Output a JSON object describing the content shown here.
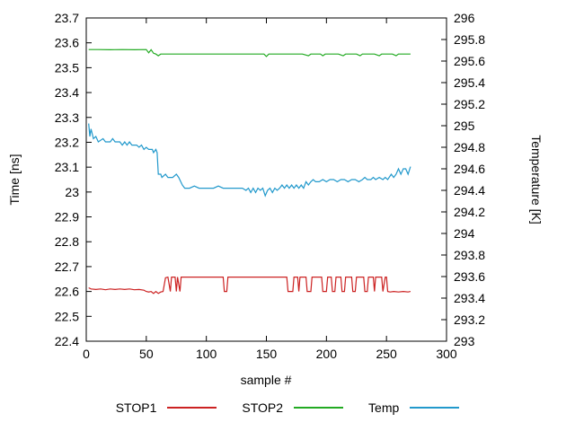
{
  "chart_data": {
    "type": "line",
    "title": "",
    "xlabel": "sample #",
    "ylabel_left": "Time [ns]",
    "ylabel_right": "Temperature [K]",
    "x_range": [
      0,
      300
    ],
    "x_ticks": [
      0,
      50,
      100,
      150,
      200,
      250,
      300
    ],
    "y_left_range": [
      22.4,
      23.7
    ],
    "y_left_ticks": [
      22.4,
      22.5,
      22.6,
      22.7,
      22.8,
      22.9,
      23,
      23.1,
      23.2,
      23.3,
      23.4,
      23.5,
      23.6,
      23.7
    ],
    "y_right_range": [
      293,
      296
    ],
    "y_right_ticks": [
      293,
      293.2,
      293.4,
      293.6,
      293.8,
      294,
      294.2,
      294.4,
      294.6,
      294.8,
      295,
      295.2,
      295.4,
      295.6,
      295.8,
      296
    ],
    "grid": false,
    "legend_position": "bottom",
    "series": [
      {
        "name": "STOP1",
        "axis": "left",
        "color": "#cc2222",
        "points": [
          [
            2,
            22.615
          ],
          [
            4,
            22.61
          ],
          [
            8,
            22.608
          ],
          [
            12,
            22.61
          ],
          [
            16,
            22.607
          ],
          [
            20,
            22.61
          ],
          [
            24,
            22.608
          ],
          [
            28,
            22.61
          ],
          [
            32,
            22.608
          ],
          [
            36,
            22.61
          ],
          [
            40,
            22.607
          ],
          [
            44,
            22.608
          ],
          [
            48,
            22.605
          ],
          [
            50,
            22.6
          ],
          [
            52,
            22.598
          ],
          [
            54,
            22.6
          ],
          [
            56,
            22.592
          ],
          [
            58,
            22.6
          ],
          [
            60,
            22.592
          ],
          [
            62,
            22.598
          ],
          [
            64,
            22.6
          ],
          [
            66,
            22.655
          ],
          [
            68,
            22.658
          ],
          [
            70,
            22.6
          ],
          [
            71,
            22.658
          ],
          [
            74,
            22.658
          ],
          [
            75,
            22.6
          ],
          [
            76,
            22.658
          ],
          [
            78,
            22.6
          ],
          [
            79,
            22.658
          ],
          [
            90,
            22.658
          ],
          [
            100,
            22.658
          ],
          [
            110,
            22.658
          ],
          [
            114,
            22.658
          ],
          [
            115,
            22.6
          ],
          [
            117,
            22.6
          ],
          [
            118,
            22.658
          ],
          [
            130,
            22.658
          ],
          [
            140,
            22.658
          ],
          [
            150,
            22.658
          ],
          [
            160,
            22.658
          ],
          [
            167,
            22.658
          ],
          [
            168,
            22.6
          ],
          [
            172,
            22.6
          ],
          [
            173,
            22.658
          ],
          [
            176,
            22.658
          ],
          [
            177,
            22.6
          ],
          [
            178,
            22.658
          ],
          [
            183,
            22.658
          ],
          [
            184,
            22.6
          ],
          [
            187,
            22.6
          ],
          [
            188,
            22.658
          ],
          [
            196,
            22.658
          ],
          [
            197,
            22.6
          ],
          [
            200,
            22.6
          ],
          [
            201,
            22.658
          ],
          [
            204,
            22.658
          ],
          [
            205,
            22.6
          ],
          [
            207,
            22.6
          ],
          [
            208,
            22.658
          ],
          [
            212,
            22.658
          ],
          [
            213,
            22.6
          ],
          [
            215,
            22.6
          ],
          [
            216,
            22.658
          ],
          [
            221,
            22.658
          ],
          [
            222,
            22.6
          ],
          [
            224,
            22.6
          ],
          [
            225,
            22.658
          ],
          [
            231,
            22.658
          ],
          [
            232,
            22.6
          ],
          [
            234,
            22.6
          ],
          [
            235,
            22.658
          ],
          [
            239,
            22.658
          ],
          [
            240,
            22.6
          ],
          [
            241,
            22.658
          ],
          [
            246,
            22.658
          ],
          [
            247,
            22.6
          ],
          [
            249,
            22.658
          ],
          [
            250,
            22.658
          ],
          [
            251,
            22.6
          ],
          [
            253,
            22.598
          ],
          [
            256,
            22.6
          ],
          [
            260,
            22.598
          ],
          [
            264,
            22.6
          ],
          [
            268,
            22.598
          ],
          [
            270,
            22.6
          ]
        ]
      },
      {
        "name": "STOP2",
        "axis": "left",
        "color": "#22aa22",
        "points": [
          [
            2,
            23.573
          ],
          [
            10,
            23.573
          ],
          [
            20,
            23.572
          ],
          [
            30,
            23.573
          ],
          [
            40,
            23.572
          ],
          [
            50,
            23.573
          ],
          [
            52,
            23.56
          ],
          [
            54,
            23.572
          ],
          [
            56,
            23.558
          ],
          [
            58,
            23.555
          ],
          [
            60,
            23.548
          ],
          [
            62,
            23.555
          ],
          [
            70,
            23.555
          ],
          [
            80,
            23.555
          ],
          [
            90,
            23.555
          ],
          [
            100,
            23.555
          ],
          [
            110,
            23.555
          ],
          [
            120,
            23.555
          ],
          [
            130,
            23.555
          ],
          [
            140,
            23.555
          ],
          [
            148,
            23.555
          ],
          [
            150,
            23.545
          ],
          [
            152,
            23.555
          ],
          [
            160,
            23.555
          ],
          [
            170,
            23.555
          ],
          [
            180,
            23.555
          ],
          [
            185,
            23.548
          ],
          [
            187,
            23.555
          ],
          [
            195,
            23.555
          ],
          [
            197,
            23.548
          ],
          [
            199,
            23.555
          ],
          [
            210,
            23.555
          ],
          [
            214,
            23.548
          ],
          [
            216,
            23.555
          ],
          [
            225,
            23.555
          ],
          [
            228,
            23.548
          ],
          [
            230,
            23.555
          ],
          [
            240,
            23.555
          ],
          [
            244,
            23.548
          ],
          [
            246,
            23.555
          ],
          [
            255,
            23.555
          ],
          [
            258,
            23.548
          ],
          [
            260,
            23.555
          ],
          [
            270,
            23.555
          ]
        ]
      },
      {
        "name": "Temp",
        "axis": "right",
        "color": "#2299cc",
        "points": [
          [
            2,
            295.02
          ],
          [
            3,
            294.9
          ],
          [
            4,
            294.97
          ],
          [
            6,
            294.88
          ],
          [
            8,
            294.9
          ],
          [
            10,
            294.85
          ],
          [
            14,
            294.88
          ],
          [
            16,
            294.85
          ],
          [
            20,
            294.85
          ],
          [
            22,
            294.88
          ],
          [
            24,
            294.85
          ],
          [
            28,
            294.85
          ],
          [
            30,
            294.82
          ],
          [
            32,
            294.85
          ],
          [
            34,
            294.82
          ],
          [
            36,
            294.85
          ],
          [
            38,
            294.82
          ],
          [
            42,
            294.82
          ],
          [
            44,
            294.8
          ],
          [
            46,
            294.82
          ],
          [
            48,
            294.78
          ],
          [
            50,
            294.8
          ],
          [
            52,
            294.78
          ],
          [
            55,
            294.78
          ],
          [
            56,
            294.75
          ],
          [
            58,
            294.78
          ],
          [
            59,
            294.75
          ],
          [
            60,
            294.55
          ],
          [
            62,
            294.55
          ],
          [
            63,
            294.52
          ],
          [
            66,
            294.55
          ],
          [
            68,
            294.52
          ],
          [
            72,
            294.52
          ],
          [
            75,
            294.55
          ],
          [
            77,
            294.52
          ],
          [
            80,
            294.45
          ],
          [
            82,
            294.42
          ],
          [
            86,
            294.42
          ],
          [
            90,
            294.44
          ],
          [
            94,
            294.42
          ],
          [
            100,
            294.42
          ],
          [
            106,
            294.42
          ],
          [
            110,
            294.44
          ],
          [
            114,
            294.42
          ],
          [
            120,
            294.42
          ],
          [
            126,
            294.42
          ],
          [
            130,
            294.42
          ],
          [
            133,
            294.4
          ],
          [
            135,
            294.42
          ],
          [
            137,
            294.38
          ],
          [
            139,
            294.42
          ],
          [
            141,
            294.38
          ],
          [
            143,
            294.42
          ],
          [
            145,
            294.4
          ],
          [
            147,
            294.42
          ],
          [
            149,
            294.35
          ],
          [
            151,
            294.4
          ],
          [
            153,
            294.42
          ],
          [
            155,
            294.38
          ],
          [
            157,
            294.42
          ],
          [
            159,
            294.4
          ],
          [
            161,
            294.42
          ],
          [
            163,
            294.45
          ],
          [
            165,
            294.42
          ],
          [
            167,
            294.45
          ],
          [
            169,
            294.42
          ],
          [
            171,
            294.45
          ],
          [
            173,
            294.42
          ],
          [
            175,
            294.45
          ],
          [
            177,
            294.42
          ],
          [
            179,
            294.45
          ],
          [
            181,
            294.42
          ],
          [
            183,
            294.48
          ],
          [
            185,
            294.45
          ],
          [
            187,
            294.48
          ],
          [
            189,
            294.5
          ],
          [
            191,
            294.48
          ],
          [
            194,
            294.48
          ],
          [
            197,
            294.5
          ],
          [
            200,
            294.48
          ],
          [
            203,
            294.5
          ],
          [
            206,
            294.5
          ],
          [
            209,
            294.48
          ],
          [
            212,
            294.5
          ],
          [
            215,
            294.5
          ],
          [
            218,
            294.48
          ],
          [
            221,
            294.5
          ],
          [
            224,
            294.5
          ],
          [
            227,
            294.48
          ],
          [
            230,
            294.5
          ],
          [
            232,
            294.52
          ],
          [
            234,
            294.5
          ],
          [
            237,
            294.5
          ],
          [
            239,
            294.52
          ],
          [
            241,
            294.5
          ],
          [
            244,
            294.52
          ],
          [
            247,
            294.5
          ],
          [
            249,
            294.52
          ],
          [
            251,
            294.5
          ],
          [
            254,
            294.55
          ],
          [
            256,
            294.52
          ],
          [
            258,
            294.55
          ],
          [
            260,
            294.6
          ],
          [
            262,
            294.55
          ],
          [
            264,
            294.6
          ],
          [
            266,
            294.6
          ],
          [
            268,
            294.55
          ],
          [
            270,
            294.62
          ]
        ]
      }
    ]
  }
}
